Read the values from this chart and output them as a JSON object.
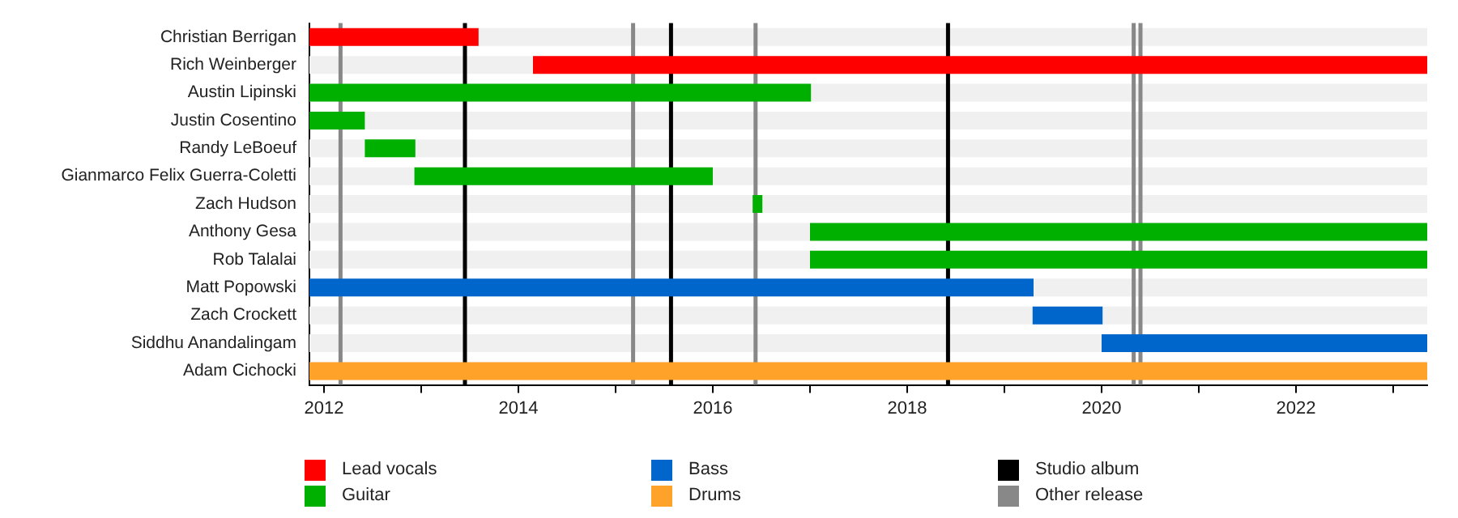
{
  "chart_data": {
    "type": "bar",
    "orientation": "horizontal",
    "categories": [
      "Christian Berrigan",
      "Rich Weinberger",
      "Austin Lipinski",
      "Justin Cosentino",
      "Randy LeBoeuf",
      "Gianmarco Felix Guerra-Coletti",
      "Zach Hudson",
      "Anthony Gesa",
      "Rob Talalai",
      "Matt Popowski",
      "Zach Crockett",
      "Siddhu Anandalingam",
      "Adam Cichocki"
    ],
    "series": [
      {
        "name": "Lead vocals",
        "color": "#ff0000",
        "base": [
          2011.85,
          2014.15,
          null,
          null,
          null,
          null,
          null,
          null,
          null,
          null,
          null,
          null,
          null
        ],
        "values": [
          1.74,
          9.2,
          null,
          null,
          null,
          null,
          null,
          null,
          null,
          null,
          null,
          null,
          null
        ]
      },
      {
        "name": "Guitar",
        "color": "#00b000",
        "base": [
          null,
          null,
          2011.85,
          2011.85,
          2012.42,
          2012.93,
          2016.41,
          2017.0,
          2017.0,
          null,
          null,
          null,
          null
        ],
        "values": [
          null,
          null,
          5.16,
          0.57,
          0.52,
          3.07,
          0.1,
          6.35,
          6.35,
          null,
          null,
          null,
          null
        ]
      },
      {
        "name": "Bass",
        "color": "#0066cc",
        "base": [
          null,
          null,
          null,
          null,
          null,
          null,
          null,
          null,
          null,
          2011.85,
          2019.29,
          2020.0,
          null
        ],
        "values": [
          null,
          null,
          null,
          null,
          null,
          null,
          null,
          null,
          null,
          7.45,
          0.72,
          3.35,
          null
        ]
      },
      {
        "name": "Drums",
        "color": "#ffa22a",
        "base": [
          null,
          null,
          null,
          null,
          null,
          null,
          null,
          null,
          null,
          null,
          null,
          null,
          2011.85
        ],
        "values": [
          null,
          null,
          null,
          null,
          null,
          null,
          null,
          null,
          null,
          null,
          null,
          null,
          11.5
        ]
      }
    ],
    "ref_lines": [
      {
        "axis": "x",
        "value": 2013.45,
        "label": "Studio album",
        "color": "#000000"
      },
      {
        "axis": "x",
        "value": 2012.17,
        "label": "Other release",
        "color": "#888888"
      },
      {
        "axis": "x",
        "value": 2015.18,
        "color": "#888888"
      },
      {
        "axis": "x",
        "value": 2015.57,
        "color": "#000000"
      },
      {
        "axis": "x",
        "value": 2016.44,
        "color": "#888888"
      },
      {
        "axis": "x",
        "value": 2018.42,
        "color": "#000000"
      },
      {
        "axis": "x",
        "value": 2020.33,
        "color": "#888888"
      },
      {
        "axis": "x",
        "value": 2020.4,
        "color": "#888888"
      }
    ],
    "xlim": [
      2011.85,
      2023.35
    ],
    "xticks": [
      2012,
      {
        "value": 2013,
        "label": null
      },
      2014,
      {
        "value": 2015,
        "label": null
      },
      2016,
      {
        "value": 2017,
        "label": null
      },
      2018,
      {
        "value": 2019,
        "label": null
      },
      2020,
      {
        "value": 2021,
        "label": null
      },
      2022,
      {
        "value": 2023,
        "label": null
      }
    ],
    "grid": false,
    "legend": "bottom"
  }
}
